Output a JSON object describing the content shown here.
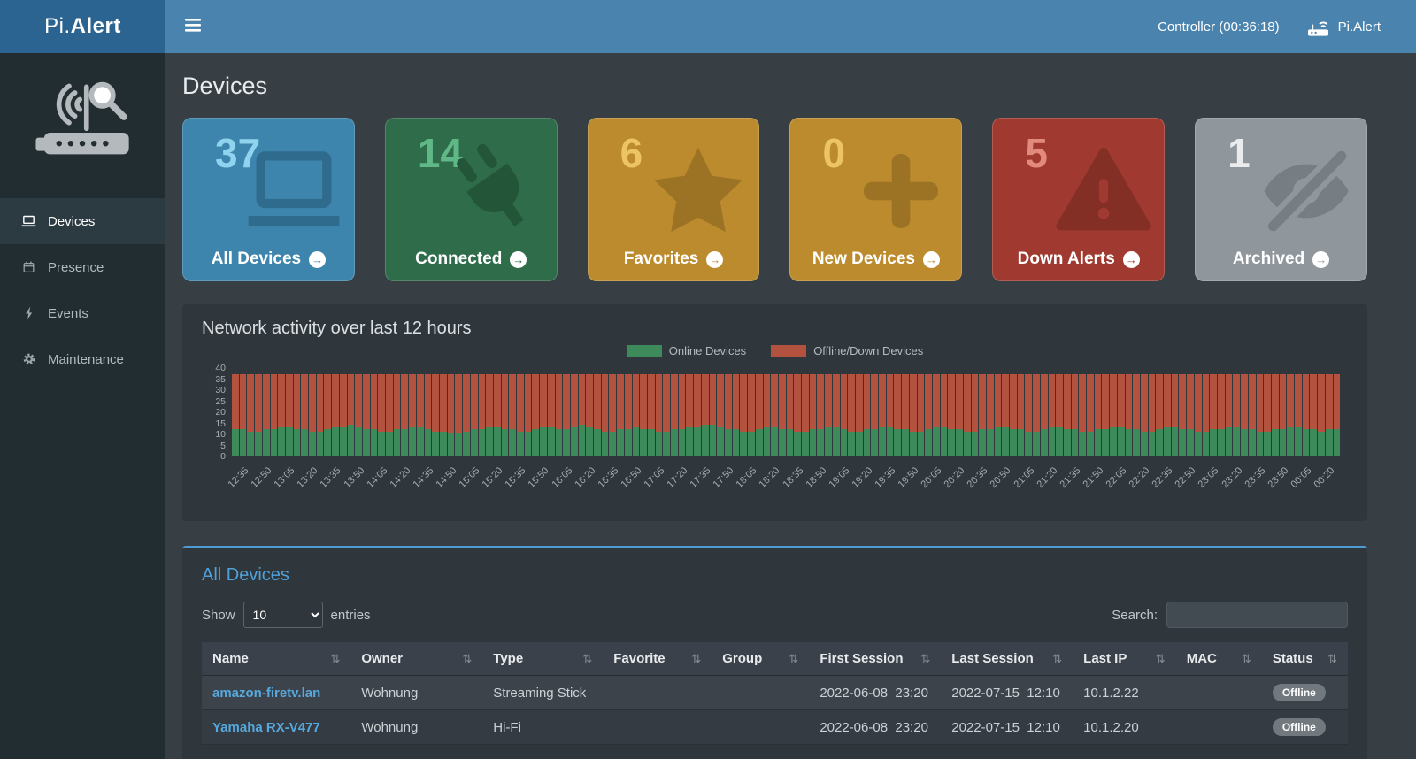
{
  "app": {
    "logo_prefix": "Pi.",
    "logo_bold": "Alert",
    "controller_label": "Controller (00:36:18)",
    "header_app_label": "Pi.Alert"
  },
  "sidebar": {
    "items": [
      {
        "label": "Devices",
        "icon": "laptop-icon",
        "active": true
      },
      {
        "label": "Presence",
        "icon": "calendar-icon",
        "active": false
      },
      {
        "label": "Events",
        "icon": "bolt-icon",
        "active": false
      },
      {
        "label": "Maintenance",
        "icon": "gear-icon",
        "active": false
      }
    ]
  },
  "page": {
    "title": "Devices"
  },
  "icons": {
    "sort": "⇅",
    "arrow": "→"
  },
  "cards": [
    {
      "value": "37",
      "label": "All Devices",
      "icon": "laptop-icon",
      "colors": {
        "bg": "#3d85ac",
        "num": "#8fd3ee",
        "icon": "#2e6b8d"
      }
    },
    {
      "value": "14",
      "label": "Connected",
      "icon": "plug-icon",
      "colors": {
        "bg": "#2e6c4a",
        "num": "#5fb886",
        "icon": "#235539"
      }
    },
    {
      "value": "6",
      "label": "Favorites",
      "icon": "star-icon",
      "colors": {
        "bg": "#bc8b2e",
        "num": "#edc464",
        "icon": "#9c7325"
      }
    },
    {
      "value": "0",
      "label": "New Devices",
      "icon": "plus-icon",
      "colors": {
        "bg": "#bc8b2e",
        "num": "#edc464",
        "icon": "#9c7325"
      }
    },
    {
      "value": "5",
      "label": "Down Alerts",
      "icon": "warning-icon",
      "colors": {
        "bg": "#a03a30",
        "num": "#e28a7e",
        "icon": "#832f26"
      }
    },
    {
      "value": "1",
      "label": "Archived",
      "icon": "eye-slash-icon",
      "colors": {
        "bg": "#8f979d",
        "num": "#e9ebec",
        "icon": "#767e84"
      }
    }
  ],
  "chart_data": {
    "type": "bar",
    "stacked": true,
    "title": "Network activity over last 12 hours",
    "legend": [
      {
        "label": "Online Devices",
        "color": "#3d8a5a"
      },
      {
        "label": "Offline/Down Devices",
        "color": "#b2523f"
      }
    ],
    "ylim": [
      0,
      40
    ],
    "y_ticks": [
      40,
      35,
      30,
      25,
      20,
      15,
      10,
      5,
      0
    ],
    "total_devices": 37,
    "bar_interval_minutes": 5,
    "x_tick_labels": [
      "12:35",
      "12:50",
      "13:05",
      "13:20",
      "13:35",
      "13:50",
      "14:05",
      "14:20",
      "14:35",
      "14:50",
      "15:05",
      "15:20",
      "15:35",
      "15:50",
      "16:05",
      "16:20",
      "16:35",
      "16:50",
      "17:05",
      "17:20",
      "17:35",
      "17:50",
      "18:05",
      "18:20",
      "18:35",
      "18:50",
      "19:05",
      "19:20",
      "19:35",
      "19:50",
      "20:05",
      "20:20",
      "20:35",
      "20:50",
      "21:05",
      "21:20",
      "21:35",
      "21:50",
      "22:05",
      "22:20",
      "22:35",
      "22:50",
      "23:05",
      "23:20",
      "23:35",
      "23:50",
      "00:05",
      "00:20"
    ],
    "series": [
      {
        "name": "Online Devices",
        "values": [
          12,
          12,
          11,
          11,
          12,
          12,
          13,
          13,
          12,
          12,
          11,
          11,
          12,
          13,
          13,
          14,
          13,
          12,
          12,
          11,
          11,
          12,
          12,
          13,
          13,
          12,
          11,
          11,
          10,
          10,
          11,
          12,
          12,
          13,
          13,
          12,
          12,
          11,
          11,
          12,
          13,
          13,
          12,
          12,
          13,
          14,
          13,
          12,
          11,
          11,
          12,
          12,
          13,
          12,
          12,
          11,
          11,
          12,
          12,
          13,
          13,
          14,
          14,
          13,
          12,
          12,
          11,
          11,
          12,
          13,
          13,
          12,
          12,
          11,
          11,
          12,
          12,
          13,
          13,
          12,
          11,
          11,
          12,
          12,
          13,
          13,
          12,
          12,
          11,
          11,
          12,
          13,
          13,
          12,
          12,
          11,
          11,
          12,
          12,
          13,
          13,
          12,
          12,
          11,
          11,
          12,
          13,
          13,
          12,
          12,
          11,
          11,
          12,
          12,
          13,
          13,
          12,
          12,
          11,
          11,
          12,
          13,
          13,
          12,
          12,
          11,
          11,
          12,
          12,
          13,
          13,
          12,
          12,
          11,
          11,
          12,
          12,
          13,
          13,
          12,
          12,
          11,
          12,
          12
        ]
      },
      {
        "name": "Offline/Down Devices",
        "values": [
          25,
          25,
          26,
          26,
          25,
          25,
          24,
          24,
          25,
          25,
          26,
          26,
          25,
          24,
          24,
          23,
          24,
          25,
          25,
          26,
          26,
          25,
          25,
          24,
          24,
          25,
          26,
          26,
          27,
          27,
          26,
          25,
          25,
          24,
          24,
          25,
          25,
          26,
          26,
          25,
          24,
          24,
          25,
          25,
          24,
          23,
          24,
          25,
          26,
          26,
          25,
          25,
          24,
          25,
          25,
          26,
          26,
          25,
          25,
          24,
          24,
          23,
          23,
          24,
          25,
          25,
          26,
          26,
          25,
          24,
          24,
          25,
          25,
          26,
          26,
          25,
          25,
          24,
          24,
          25,
          26,
          26,
          25,
          25,
          24,
          24,
          25,
          25,
          26,
          26,
          25,
          24,
          24,
          25,
          25,
          26,
          26,
          25,
          25,
          24,
          24,
          25,
          25,
          26,
          26,
          25,
          24,
          24,
          25,
          25,
          26,
          26,
          25,
          25,
          24,
          24,
          25,
          25,
          26,
          26,
          25,
          24,
          24,
          25,
          25,
          26,
          26,
          25,
          25,
          24,
          24,
          25,
          25,
          26,
          26,
          25,
          25,
          24,
          24,
          25,
          25,
          26,
          25,
          25
        ]
      }
    ]
  },
  "table_panel": {
    "title": "All Devices",
    "show_label": "Show",
    "entries_label": "entries",
    "page_size_selected": "10",
    "search_label": "Search:",
    "search_value": "",
    "columns": [
      "Name",
      "Owner",
      "Type",
      "Favorite",
      "Group",
      "First Session",
      "Last Session",
      "Last IP",
      "MAC",
      "Status"
    ],
    "rows": [
      {
        "cells": [
          "amazon-firetv.lan",
          "Wohnung",
          "Streaming Stick",
          "",
          "",
          "2022-06-08  23:20",
          "2022-07-15  12:10",
          "10.1.2.22",
          ""
        ],
        "status": "Offline"
      },
      {
        "cells": [
          "Yamaha RX-V477",
          "Wohnung",
          "Hi-Fi",
          "",
          "",
          "2022-06-08  23:20",
          "2022-07-15  12:10",
          "10.1.2.20",
          ""
        ],
        "status": "Offline"
      }
    ]
  }
}
